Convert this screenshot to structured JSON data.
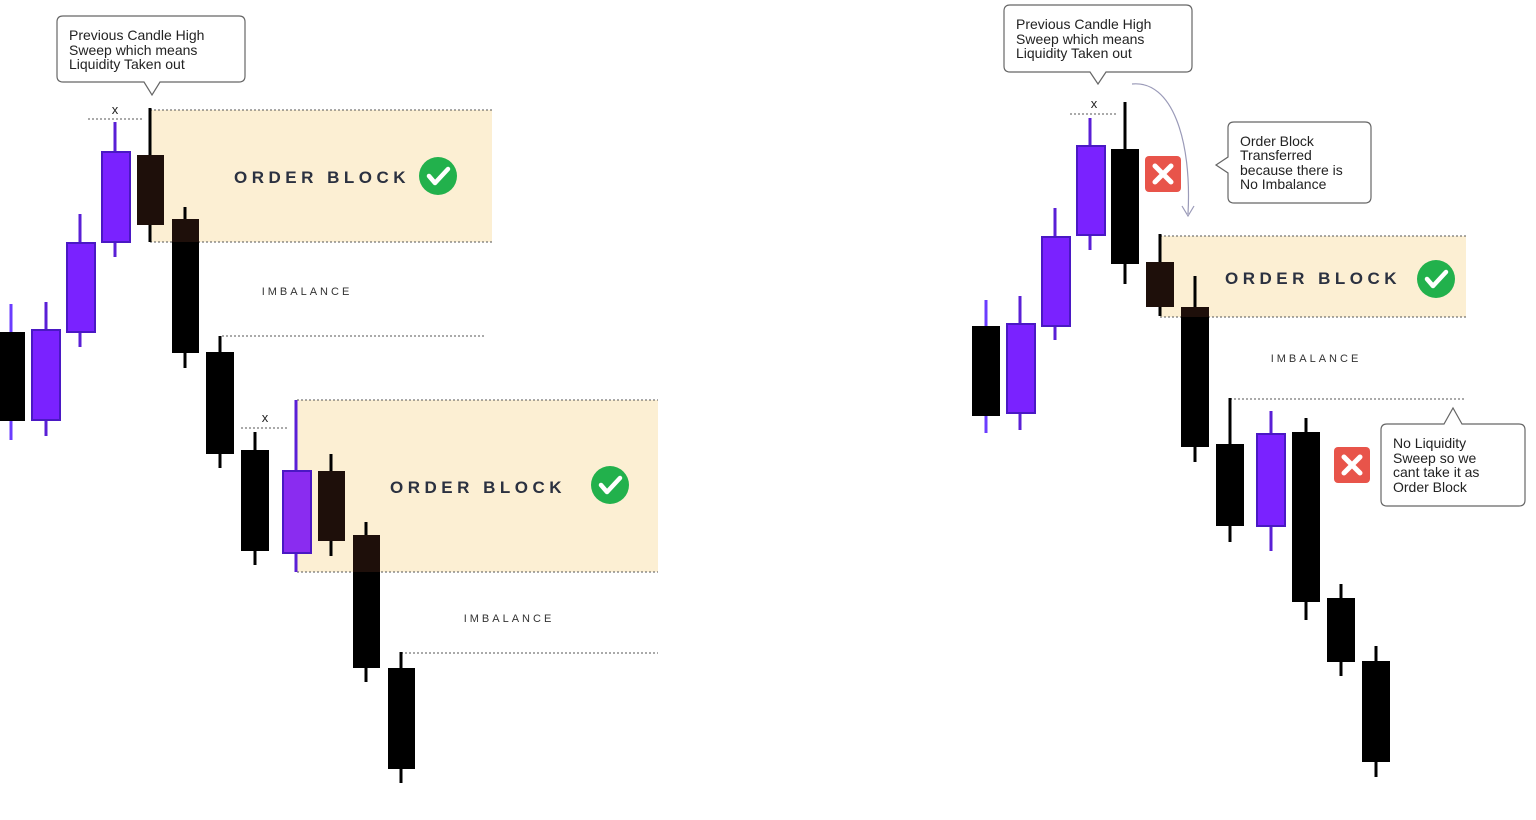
{
  "left": {
    "callout": [
      "Previous Candle High",
      "Sweep which means",
      "Liquidity Taken out"
    ],
    "sweep_marks": [
      "x",
      "x"
    ],
    "order_block_labels": [
      "ORDER BLOCK",
      "ORDER BLOCK"
    ],
    "imbalance_labels": [
      "IMBALANCE",
      "IMBALANCE"
    ],
    "valid_icons": [
      "check-icon",
      "check-icon"
    ]
  },
  "right": {
    "callout_sweep": [
      "Previous Candle High",
      "Sweep which means",
      "Liquidity Taken out"
    ],
    "callout_transfer": [
      "Order Block",
      "Transferred",
      "because there is",
      "No Imbalance"
    ],
    "callout_no_sweep": [
      "No Liquidity",
      "Sweep so we",
      "cant take it as",
      "Order Block"
    ],
    "sweep_mark": "x",
    "order_block_label": "ORDER BLOCK",
    "imbalance_label": "IMBALANCE",
    "valid_icon": "check-icon",
    "invalid_icons": [
      "cross-icon",
      "cross-icon"
    ]
  },
  "colors": {
    "bull": "#7a22ff",
    "bear": "#000000",
    "order_block_fill": "#fcefd3",
    "check": "#22b14c",
    "cross": "#e8544a",
    "label_text": "#2b3140",
    "dotted_line": "#555555"
  }
}
